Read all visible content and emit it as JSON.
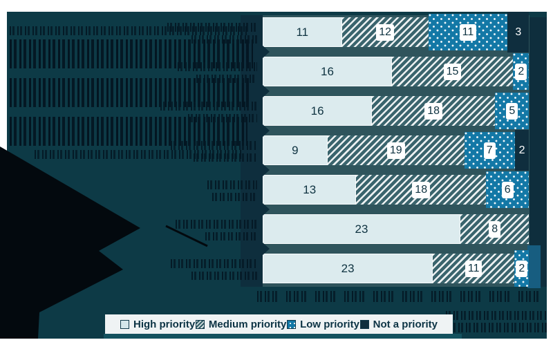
{
  "legend": {
    "items": [
      {
        "key": "high",
        "label": "High priority"
      },
      {
        "key": "medium",
        "label": "Medium priority"
      },
      {
        "key": "low",
        "label": "Low priority"
      },
      {
        "key": "not",
        "label": "Not a priority"
      }
    ]
  },
  "chart_data": {
    "type": "bar",
    "orientation": "horizontal",
    "stacked": true,
    "normalized": true,
    "series_names": {
      "high": "High priority",
      "medium": "Medium priority",
      "low": "Low priority",
      "not": "Not a priority"
    },
    "rows": [
      {
        "segments": [
          {
            "key": "high",
            "value": 11
          },
          {
            "key": "medium",
            "value": 12
          },
          {
            "key": "low",
            "value": 11
          },
          {
            "key": "not",
            "value": 3
          }
        ]
      },
      {
        "segments": [
          {
            "key": "high",
            "value": 16
          },
          {
            "key": "medium",
            "value": 15
          },
          {
            "key": "low",
            "value": 2
          }
        ]
      },
      {
        "segments": [
          {
            "key": "high",
            "value": 16
          },
          {
            "key": "medium",
            "value": 18
          },
          {
            "key": "low",
            "value": 5
          }
        ]
      },
      {
        "segments": [
          {
            "key": "high",
            "value": 9
          },
          {
            "key": "medium",
            "value": 19
          },
          {
            "key": "low",
            "value": 7
          },
          {
            "key": "not",
            "value": 2
          }
        ]
      },
      {
        "segments": [
          {
            "key": "high",
            "value": 13
          },
          {
            "key": "medium",
            "value": 18
          },
          {
            "key": "low",
            "value": 6
          }
        ]
      },
      {
        "segments": [
          {
            "key": "high",
            "value": 23
          },
          {
            "key": "medium",
            "value": 8
          }
        ]
      },
      {
        "segments": [
          {
            "key": "high",
            "value": 23
          },
          {
            "key": "medium",
            "value": 11
          },
          {
            "key": "low",
            "value": 2
          }
        ]
      }
    ],
    "value_labels_shown": true,
    "legend_position": "bottom"
  },
  "colors": {
    "high": "#dcebee",
    "medium": "#3a646d",
    "low": "#1378a6",
    "not": "#0f2e3e",
    "canvas_background": "#0d3a46",
    "plot_background": "#2f545c",
    "legend_background": "#eff3f4",
    "accent_strip": "#14525f",
    "side_patch": "#175d80",
    "value_text": "#0e3240"
  }
}
